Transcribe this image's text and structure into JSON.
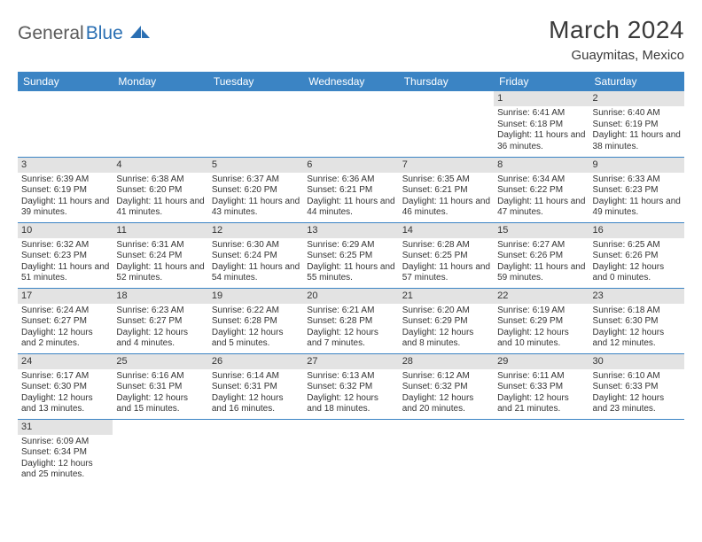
{
  "logo": {
    "general": "General",
    "blue": "Blue"
  },
  "title": "March 2024",
  "location": "Guaymitas, Mexico",
  "colors": {
    "header_bg": "#3b84c4",
    "header_text": "#ffffff",
    "daynum_bg": "#e3e3e3",
    "border": "#3b84c4",
    "logo_gray": "#5a5a5a",
    "logo_blue": "#2a6fb3"
  },
  "weekdays": [
    "Sunday",
    "Monday",
    "Tuesday",
    "Wednesday",
    "Thursday",
    "Friday",
    "Saturday"
  ],
  "weeks": [
    [
      null,
      null,
      null,
      null,
      null,
      {
        "n": "1",
        "sr": "Sunrise: 6:41 AM",
        "ss": "Sunset: 6:18 PM",
        "dl": "Daylight: 11 hours and 36 minutes."
      },
      {
        "n": "2",
        "sr": "Sunrise: 6:40 AM",
        "ss": "Sunset: 6:19 PM",
        "dl": "Daylight: 11 hours and 38 minutes."
      }
    ],
    [
      {
        "n": "3",
        "sr": "Sunrise: 6:39 AM",
        "ss": "Sunset: 6:19 PM",
        "dl": "Daylight: 11 hours and 39 minutes."
      },
      {
        "n": "4",
        "sr": "Sunrise: 6:38 AM",
        "ss": "Sunset: 6:20 PM",
        "dl": "Daylight: 11 hours and 41 minutes."
      },
      {
        "n": "5",
        "sr": "Sunrise: 6:37 AM",
        "ss": "Sunset: 6:20 PM",
        "dl": "Daylight: 11 hours and 43 minutes."
      },
      {
        "n": "6",
        "sr": "Sunrise: 6:36 AM",
        "ss": "Sunset: 6:21 PM",
        "dl": "Daylight: 11 hours and 44 minutes."
      },
      {
        "n": "7",
        "sr": "Sunrise: 6:35 AM",
        "ss": "Sunset: 6:21 PM",
        "dl": "Daylight: 11 hours and 46 minutes."
      },
      {
        "n": "8",
        "sr": "Sunrise: 6:34 AM",
        "ss": "Sunset: 6:22 PM",
        "dl": "Daylight: 11 hours and 47 minutes."
      },
      {
        "n": "9",
        "sr": "Sunrise: 6:33 AM",
        "ss": "Sunset: 6:23 PM",
        "dl": "Daylight: 11 hours and 49 minutes."
      }
    ],
    [
      {
        "n": "10",
        "sr": "Sunrise: 6:32 AM",
        "ss": "Sunset: 6:23 PM",
        "dl": "Daylight: 11 hours and 51 minutes."
      },
      {
        "n": "11",
        "sr": "Sunrise: 6:31 AM",
        "ss": "Sunset: 6:24 PM",
        "dl": "Daylight: 11 hours and 52 minutes."
      },
      {
        "n": "12",
        "sr": "Sunrise: 6:30 AM",
        "ss": "Sunset: 6:24 PM",
        "dl": "Daylight: 11 hours and 54 minutes."
      },
      {
        "n": "13",
        "sr": "Sunrise: 6:29 AM",
        "ss": "Sunset: 6:25 PM",
        "dl": "Daylight: 11 hours and 55 minutes."
      },
      {
        "n": "14",
        "sr": "Sunrise: 6:28 AM",
        "ss": "Sunset: 6:25 PM",
        "dl": "Daylight: 11 hours and 57 minutes."
      },
      {
        "n": "15",
        "sr": "Sunrise: 6:27 AM",
        "ss": "Sunset: 6:26 PM",
        "dl": "Daylight: 11 hours and 59 minutes."
      },
      {
        "n": "16",
        "sr": "Sunrise: 6:25 AM",
        "ss": "Sunset: 6:26 PM",
        "dl": "Daylight: 12 hours and 0 minutes."
      }
    ],
    [
      {
        "n": "17",
        "sr": "Sunrise: 6:24 AM",
        "ss": "Sunset: 6:27 PM",
        "dl": "Daylight: 12 hours and 2 minutes."
      },
      {
        "n": "18",
        "sr": "Sunrise: 6:23 AM",
        "ss": "Sunset: 6:27 PM",
        "dl": "Daylight: 12 hours and 4 minutes."
      },
      {
        "n": "19",
        "sr": "Sunrise: 6:22 AM",
        "ss": "Sunset: 6:28 PM",
        "dl": "Daylight: 12 hours and 5 minutes."
      },
      {
        "n": "20",
        "sr": "Sunrise: 6:21 AM",
        "ss": "Sunset: 6:28 PM",
        "dl": "Daylight: 12 hours and 7 minutes."
      },
      {
        "n": "21",
        "sr": "Sunrise: 6:20 AM",
        "ss": "Sunset: 6:29 PM",
        "dl": "Daylight: 12 hours and 8 minutes."
      },
      {
        "n": "22",
        "sr": "Sunrise: 6:19 AM",
        "ss": "Sunset: 6:29 PM",
        "dl": "Daylight: 12 hours and 10 minutes."
      },
      {
        "n": "23",
        "sr": "Sunrise: 6:18 AM",
        "ss": "Sunset: 6:30 PM",
        "dl": "Daylight: 12 hours and 12 minutes."
      }
    ],
    [
      {
        "n": "24",
        "sr": "Sunrise: 6:17 AM",
        "ss": "Sunset: 6:30 PM",
        "dl": "Daylight: 12 hours and 13 minutes."
      },
      {
        "n": "25",
        "sr": "Sunrise: 6:16 AM",
        "ss": "Sunset: 6:31 PM",
        "dl": "Daylight: 12 hours and 15 minutes."
      },
      {
        "n": "26",
        "sr": "Sunrise: 6:14 AM",
        "ss": "Sunset: 6:31 PM",
        "dl": "Daylight: 12 hours and 16 minutes."
      },
      {
        "n": "27",
        "sr": "Sunrise: 6:13 AM",
        "ss": "Sunset: 6:32 PM",
        "dl": "Daylight: 12 hours and 18 minutes."
      },
      {
        "n": "28",
        "sr": "Sunrise: 6:12 AM",
        "ss": "Sunset: 6:32 PM",
        "dl": "Daylight: 12 hours and 20 minutes."
      },
      {
        "n": "29",
        "sr": "Sunrise: 6:11 AM",
        "ss": "Sunset: 6:33 PM",
        "dl": "Daylight: 12 hours and 21 minutes."
      },
      {
        "n": "30",
        "sr": "Sunrise: 6:10 AM",
        "ss": "Sunset: 6:33 PM",
        "dl": "Daylight: 12 hours and 23 minutes."
      }
    ],
    [
      {
        "n": "31",
        "sr": "Sunrise: 6:09 AM",
        "ss": "Sunset: 6:34 PM",
        "dl": "Daylight: 12 hours and 25 minutes."
      },
      null,
      null,
      null,
      null,
      null,
      null
    ]
  ]
}
